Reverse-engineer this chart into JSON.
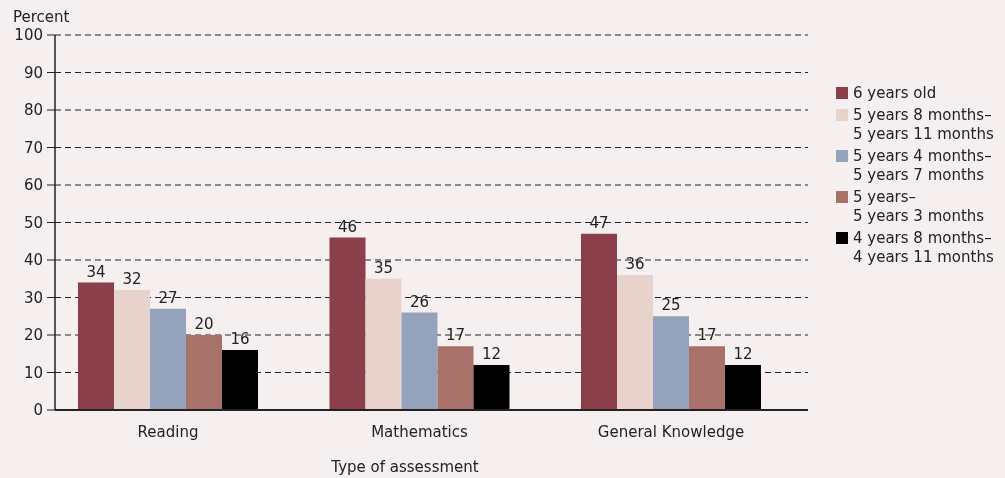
{
  "chart_data": {
    "type": "bar",
    "ylabel": "Percent",
    "xlabel": "Type of assessment",
    "categories": [
      "Reading",
      "Mathematics",
      "General Knowledge"
    ],
    "series": [
      {
        "name": "6 years old",
        "color": "#8b3f4a",
        "values": [
          34,
          46,
          47
        ]
      },
      {
        "name": "5 years 8 months–\n5 years 11 months",
        "color": "#e8d3cc",
        "values": [
          32,
          35,
          36
        ]
      },
      {
        "name": "5 years 4 months–\n5 years 7 months",
        "color": "#95a2bb",
        "values": [
          27,
          26,
          25
        ]
      },
      {
        "name": "5 years–\n5 years 3 months",
        "color": "#a8716a",
        "values": [
          20,
          17,
          17
        ]
      },
      {
        "name": "4 years 8 months–\n4 years 11 months",
        "color": "#000000",
        "values": [
          16,
          12,
          12
        ]
      }
    ],
    "ylim": [
      0,
      100
    ],
    "yticks": [
      0,
      10,
      20,
      30,
      40,
      50,
      60,
      70,
      80,
      90,
      100
    ],
    "grid": "y",
    "legend": "right",
    "data_labels": true
  }
}
